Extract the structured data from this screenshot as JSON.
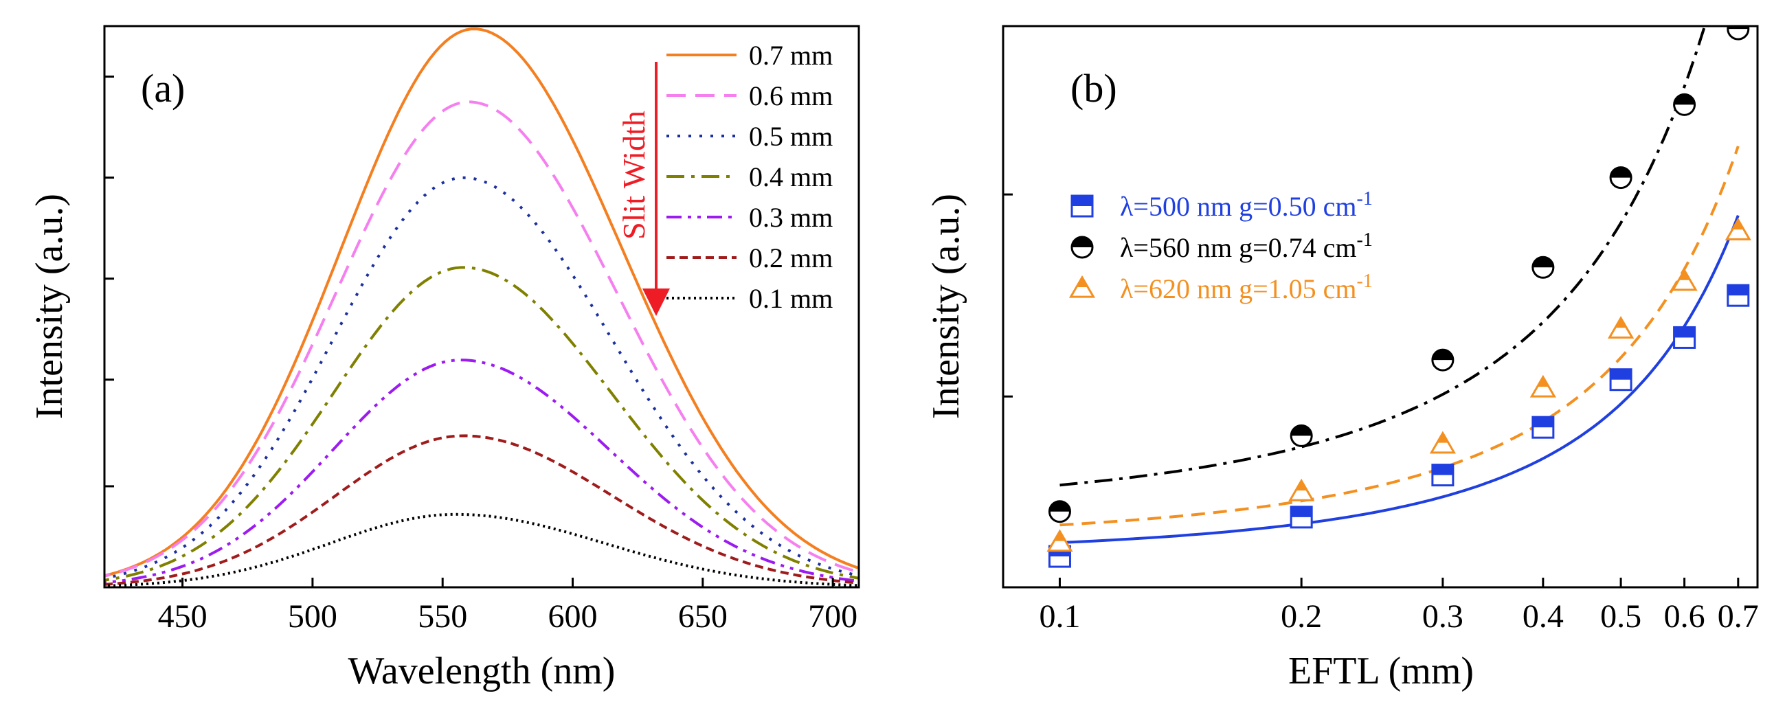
{
  "chart_data": [
    {
      "panel": "(a)",
      "type": "line",
      "xlabel": "Wavelength (nm)",
      "ylabel": "Intensity (a.u.)",
      "xlim": [
        420,
        710
      ],
      "ylim": [
        0,
        1.0
      ],
      "xticks": [
        "450",
        "500",
        "550",
        "600",
        "650",
        "700"
      ],
      "xtick_values": [
        450,
        500,
        550,
        600,
        650,
        700
      ],
      "yticks_unlabeled": [
        0.18,
        0.37,
        0.55,
        0.73,
        0.91
      ],
      "legend_title": "Slit Width",
      "series": [
        {
          "name": "0.7 mm",
          "peak_x": 562,
          "peak_y": 0.995,
          "sigma_left": 51,
          "sigma_right": 57,
          "color": "#f47f20",
          "style": "solid"
        },
        {
          "name": "0.6 mm",
          "peak_x": 560,
          "peak_y": 0.865,
          "sigma_left": 51,
          "sigma_right": 57,
          "color": "#f67ff0",
          "style": "long-dash"
        },
        {
          "name": "0.5 mm",
          "peak_x": 558,
          "peak_y": 0.73,
          "sigma_left": 50,
          "sigma_right": 57,
          "color": "#1c2f9e",
          "style": "dot"
        },
        {
          "name": "0.4 mm",
          "peak_x": 558,
          "peak_y": 0.57,
          "sigma_left": 50,
          "sigma_right": 57,
          "color": "#808000",
          "style": "dash-dot"
        },
        {
          "name": "0.3 mm",
          "peak_x": 557,
          "peak_y": 0.405,
          "sigma_left": 49,
          "sigma_right": 57,
          "color": "#9b1bf0",
          "style": "dash-dot-dot"
        },
        {
          "name": "0.2 mm",
          "peak_x": 558,
          "peak_y": 0.27,
          "sigma_left": 49,
          "sigma_right": 57,
          "color": "#a01c1c",
          "style": "short-dash"
        },
        {
          "name": "0.1 mm",
          "peak_x": 555,
          "peak_y": 0.13,
          "sigma_left": 48,
          "sigma_right": 57,
          "color": "#000000",
          "style": "short-dot"
        }
      ]
    },
    {
      "panel": "(b)",
      "type": "scatter",
      "xscale": "log",
      "xlabel": "EFTL (mm)",
      "ylabel": "Intensity (a.u.)",
      "xlim": [
        0.085,
        0.74
      ],
      "ylim": [
        0,
        1.0
      ],
      "xticks": [
        "0.1",
        "0.2",
        "0.3",
        "0.4",
        "0.5",
        "0.6",
        "0.7"
      ],
      "xtick_values": [
        0.1,
        0.2,
        0.3,
        0.4,
        0.5,
        0.6,
        0.7
      ],
      "yticks_unlabeled": [
        0.34,
        0.7
      ],
      "x": [
        0.1,
        0.2,
        0.3,
        0.4,
        0.5,
        0.6,
        0.7
      ],
      "series": [
        {
          "name": "λ=500 nm  g=0.50 cm",
          "sup": "-1",
          "marker": "square-half",
          "color": "#1f3fe0",
          "line": "solid",
          "values": [
            0.055,
            0.125,
            0.2,
            0.285,
            0.37,
            0.445,
            0.52
          ]
        },
        {
          "name": "λ=560 nm  g=0.74 cm",
          "sup": "-1",
          "marker": "circle-half",
          "color": "#000000",
          "line": "dash-dot",
          "values": [
            0.135,
            0.27,
            0.405,
            0.57,
            0.73,
            0.86,
            0.995
          ]
        },
        {
          "name": "λ=620 nm  g=1.05 cm",
          "sup": "-1",
          "marker": "triangle-half",
          "color": "#f39020",
          "line": "dashed",
          "values": [
            0.08,
            0.17,
            0.255,
            0.355,
            0.46,
            0.545,
            0.635
          ]
        }
      ]
    }
  ]
}
